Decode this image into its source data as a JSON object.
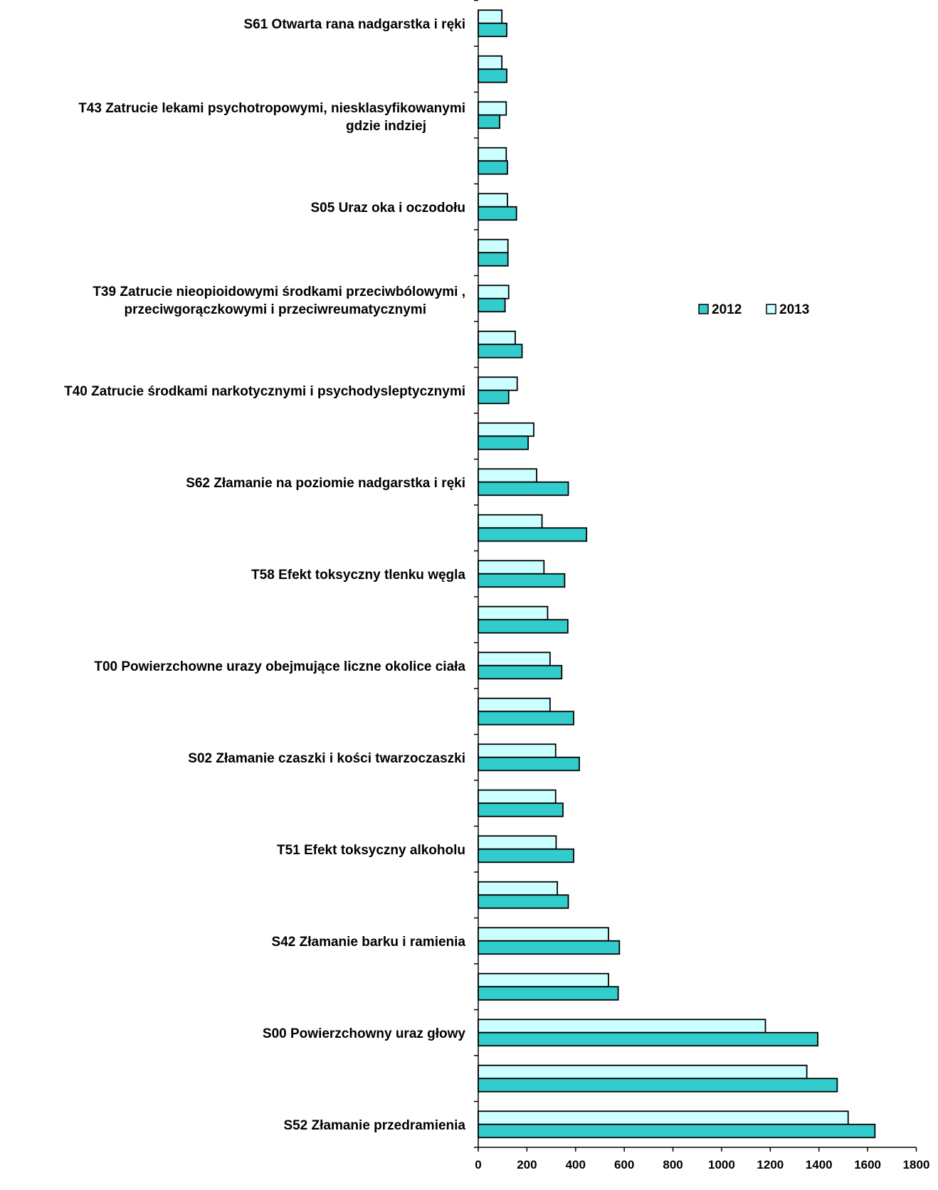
{
  "chart_data": {
    "type": "bar",
    "orientation": "horizontal",
    "categories": [
      "S52 Złamanie przedramienia",
      "",
      "S00 Powierzchowny uraz głowy",
      "",
      "S42 Złamanie barku i ramienia",
      "",
      "T51 Efekt toksyczny alkoholu",
      "",
      "S02 Złamanie czaszki i kości twarzoczaszki",
      "",
      "T00 Powierzchowne urazy obejmujące liczne okolice ciała",
      "",
      "T58 Efekt toksyczny tlenku węgla",
      "",
      "S62 Złamanie na poziomie nadgarstka i ręki",
      "",
      "T40 Zatrucie środkami narkotycznymi i psychodysleptycznymi",
      "",
      "T39 Zatrucie nieopioidowymi środkami przeciwbólowymi , przeciwgorączkowymi i przeciwreumatycznymi",
      "",
      "S05 Uraz oka i oczodołu",
      "",
      "T43 Zatrucie lekami psychotropowymi, niesklasyfikowanymi gdzie indziej",
      "",
      "S61 Otwarta rana nadgarstka i ręki"
    ],
    "category_lines": [
      [
        "S52 Złamanie przedramienia"
      ],
      [],
      [
        "S00 Powierzchowny uraz głowy"
      ],
      [],
      [
        "S42 Złamanie barku i ramienia"
      ],
      [],
      [
        "T51 Efekt toksyczny alkoholu"
      ],
      [],
      [
        "S02 Złamanie czaszki i kości twarzoczaszki"
      ],
      [],
      [
        "T00 Powierzchowne urazy obejmujące liczne okolice ciała"
      ],
      [],
      [
        "T58 Efekt toksyczny tlenku węgla"
      ],
      [],
      [
        "S62 Złamanie na poziomie nadgarstka i ręki"
      ],
      [],
      [
        "T40 Zatrucie środkami narkotycznymi i psychodysleptycznymi"
      ],
      [],
      [
        "T39 Zatrucie nieopioidowymi środkami przeciwbólowymi ,",
        "przeciwgorączkowymi i przeciwreumatycznymi"
      ],
      [],
      [
        "S05 Uraz oka i oczodołu"
      ],
      [],
      [
        "T43 Zatrucie lekami psychotropowymi, niesklasyfikowanymi",
        "gdzie indziej"
      ],
      [],
      [
        "S61 Otwarta rana nadgarstka i ręki"
      ]
    ],
    "series": [
      {
        "name": "2012",
        "color": "#33CCCC",
        "values": [
          1630,
          1475,
          1395,
          575,
          580,
          370,
          392,
          348,
          415,
          392,
          343,
          368,
          355,
          445,
          370,
          205,
          125,
          180,
          110,
          122,
          157,
          120,
          88,
          117,
          117
        ]
      },
      {
        "name": "2013",
        "color": "#CCFFFF",
        "values": [
          1520,
          1350,
          1180,
          535,
          535,
          325,
          320,
          318,
          318,
          295,
          295,
          285,
          270,
          262,
          240,
          228,
          160,
          152,
          125,
          122,
          120,
          115,
          115,
          97,
          97
        ]
      }
    ],
    "xlim": [
      0,
      1800
    ],
    "xticks": [
      "0",
      "200",
      "400",
      "600",
      "800",
      "1000",
      "1200",
      "1400",
      "1600",
      "1800"
    ],
    "legend": {
      "position": "right",
      "entries": [
        "2012",
        "2013"
      ]
    },
    "grid": false
  }
}
